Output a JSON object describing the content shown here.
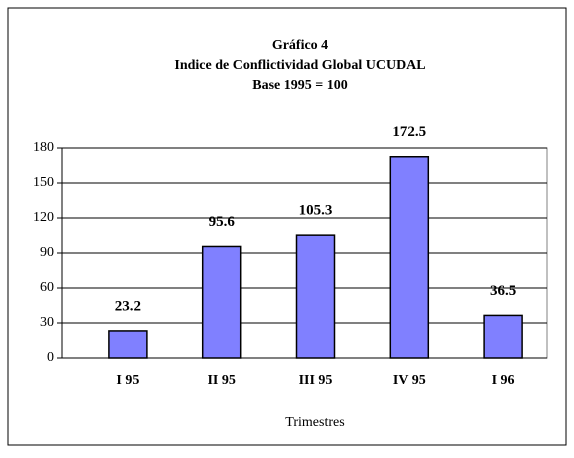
{
  "chart_data": {
    "type": "bar",
    "title": [
      "Gráfico 4",
      "Indice de Conflictividad Global UCUDAL",
      "Base 1995 = 100"
    ],
    "x_label": "Trimestres",
    "categories": [
      "I 95",
      "II 95",
      "III 95",
      "IV 95",
      "I 96"
    ],
    "values": [
      23.2,
      95.6,
      105.3,
      172.5,
      36.5
    ],
    "color": "#8080ff",
    "ylim": [
      0,
      180
    ],
    "yticks": [
      0,
      30,
      60,
      90,
      120,
      150,
      180
    ],
    "grid": true
  }
}
